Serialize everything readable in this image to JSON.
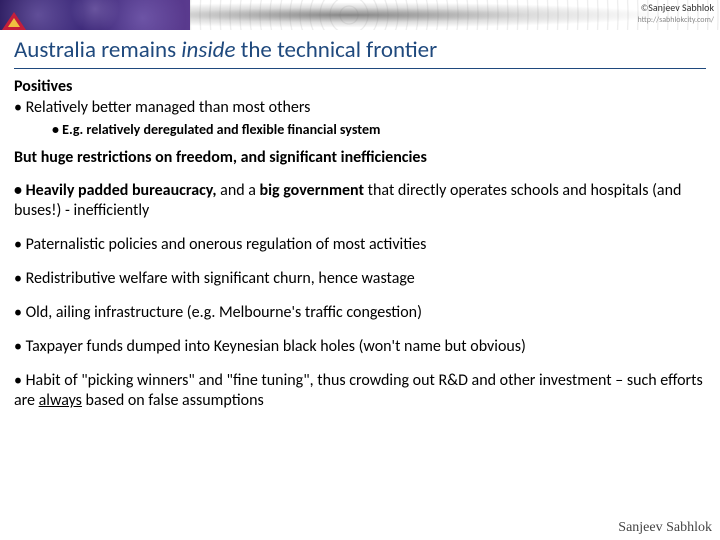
{
  "attribution": {
    "copyright": "©",
    "name": "Sanjeev Sabhlok",
    "url": "http://sabhlokcity.com/"
  },
  "title": {
    "pre": "Australia remains ",
    "italic": "inside",
    "post": " the technical frontier"
  },
  "positives": {
    "heading": "Positives",
    "bullet1": "• Relatively better managed than most others",
    "sub1": "• E.g. relatively deregulated and flexible financial system"
  },
  "restrictions": {
    "heading": "But huge restrictions on freedom, and significant inefficiencies",
    "b1_bold1": "• Heavily padded bureaucracy,",
    "b1_mid": " and a ",
    "b1_bold2": "big government",
    "b1_rest": " that directly operates schools and hospitals (and buses!) - inefficiently",
    "b2": "• Paternalistic policies and onerous regulation of most activities",
    "b3": "• Redistributive welfare with significant churn, hence wastage",
    "b4": "• Old, ailing infrastructure (e.g. Melbourne's traffic congestion)",
    "b5": "• Taxpayer funds dumped into Keynesian black holes (won't name but obvious)",
    "b6_pre": "• Habit of \"picking winners\" and \"fine tuning\", thus crowding out R&D and other investment –  such efforts are ",
    "b6_ul": "always",
    "b6_post": " based on false assumptions"
  },
  "footer": "Sanjeev Sabhlok"
}
